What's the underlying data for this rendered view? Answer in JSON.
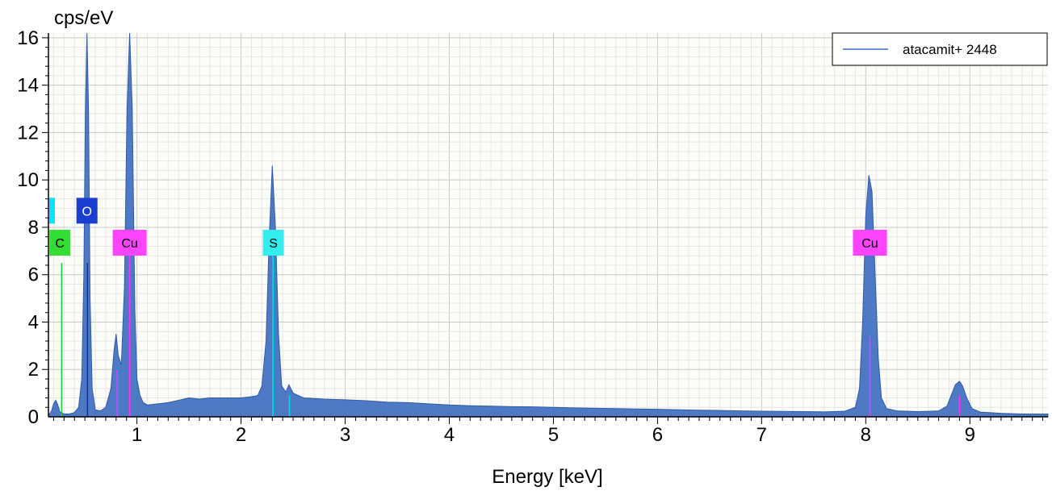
{
  "chart_data": {
    "type": "area",
    "title": "",
    "xlabel": "Energy [keV]",
    "ylabel": "cps/eV",
    "xlim": [
      0.15,
      9.75
    ],
    "ylim": [
      0,
      16.2
    ],
    "x_ticks": [
      1,
      2,
      3,
      4,
      5,
      6,
      7,
      8,
      9
    ],
    "y_ticks": [
      0,
      2,
      4,
      6,
      8,
      10,
      12,
      14,
      16
    ],
    "grid": true,
    "legend_position": "top-right",
    "series": [
      {
        "name": "atacamit+ 2448",
        "color": "#3f6fc0",
        "points": [
          [
            0.15,
            0.05
          ],
          [
            0.18,
            0.25
          ],
          [
            0.2,
            0.55
          ],
          [
            0.22,
            0.7
          ],
          [
            0.24,
            0.5
          ],
          [
            0.26,
            0.2
          ],
          [
            0.3,
            0.12
          ],
          [
            0.35,
            0.12
          ],
          [
            0.4,
            0.18
          ],
          [
            0.44,
            0.4
          ],
          [
            0.47,
            1.6
          ],
          [
            0.49,
            6.0
          ],
          [
            0.505,
            13.0
          ],
          [
            0.52,
            16.2
          ],
          [
            0.535,
            13.0
          ],
          [
            0.55,
            5.0
          ],
          [
            0.57,
            1.2
          ],
          [
            0.6,
            0.3
          ],
          [
            0.65,
            0.25
          ],
          [
            0.7,
            0.4
          ],
          [
            0.75,
            1.2
          ],
          [
            0.78,
            2.8
          ],
          [
            0.8,
            3.5
          ],
          [
            0.82,
            2.6
          ],
          [
            0.85,
            2.2
          ],
          [
            0.88,
            5.5
          ],
          [
            0.905,
            13.0
          ],
          [
            0.93,
            16.2
          ],
          [
            0.955,
            13.0
          ],
          [
            0.98,
            4.5
          ],
          [
            1.0,
            1.6
          ],
          [
            1.03,
            0.9
          ],
          [
            1.06,
            0.6
          ],
          [
            1.1,
            0.5
          ],
          [
            1.2,
            0.55
          ],
          [
            1.3,
            0.6
          ],
          [
            1.4,
            0.7
          ],
          [
            1.5,
            0.8
          ],
          [
            1.6,
            0.75
          ],
          [
            1.7,
            0.8
          ],
          [
            1.8,
            0.8
          ],
          [
            1.9,
            0.8
          ],
          [
            2.0,
            0.8
          ],
          [
            2.1,
            0.85
          ],
          [
            2.16,
            0.9
          ],
          [
            2.2,
            1.3
          ],
          [
            2.24,
            3.2
          ],
          [
            2.27,
            7.5
          ],
          [
            2.3,
            10.6
          ],
          [
            2.33,
            8.0
          ],
          [
            2.36,
            3.5
          ],
          [
            2.39,
            1.3
          ],
          [
            2.43,
            1.05
          ],
          [
            2.46,
            1.35
          ],
          [
            2.5,
            1.0
          ],
          [
            2.6,
            0.8
          ],
          [
            2.8,
            0.75
          ],
          [
            3.0,
            0.72
          ],
          [
            3.2,
            0.68
          ],
          [
            3.4,
            0.62
          ],
          [
            3.6,
            0.6
          ],
          [
            3.8,
            0.55
          ],
          [
            4.0,
            0.5
          ],
          [
            4.2,
            0.47
          ],
          [
            4.4,
            0.45
          ],
          [
            4.6,
            0.43
          ],
          [
            4.8,
            0.42
          ],
          [
            5.0,
            0.4
          ],
          [
            5.2,
            0.38
          ],
          [
            5.4,
            0.36
          ],
          [
            5.6,
            0.35
          ],
          [
            5.8,
            0.33
          ],
          [
            6.0,
            0.32
          ],
          [
            6.2,
            0.3
          ],
          [
            6.4,
            0.28
          ],
          [
            6.6,
            0.27
          ],
          [
            6.8,
            0.25
          ],
          [
            7.0,
            0.24
          ],
          [
            7.2,
            0.23
          ],
          [
            7.4,
            0.22
          ],
          [
            7.6,
            0.21
          ],
          [
            7.8,
            0.24
          ],
          [
            7.9,
            0.4
          ],
          [
            7.94,
            1.2
          ],
          [
            7.97,
            4.0
          ],
          [
            8.0,
            8.5
          ],
          [
            8.03,
            10.2
          ],
          [
            8.06,
            9.5
          ],
          [
            8.09,
            6.0
          ],
          [
            8.12,
            2.5
          ],
          [
            8.15,
            0.8
          ],
          [
            8.2,
            0.35
          ],
          [
            8.3,
            0.25
          ],
          [
            8.5,
            0.22
          ],
          [
            8.7,
            0.25
          ],
          [
            8.78,
            0.45
          ],
          [
            8.82,
            0.9
          ],
          [
            8.86,
            1.35
          ],
          [
            8.9,
            1.5
          ],
          [
            8.93,
            1.3
          ],
          [
            8.97,
            0.8
          ],
          [
            9.02,
            0.35
          ],
          [
            9.1,
            0.2
          ],
          [
            9.3,
            0.15
          ],
          [
            9.5,
            0.12
          ],
          [
            9.75,
            0.12
          ]
        ]
      }
    ],
    "element_lines": [
      {
        "energy": 0.277,
        "height": 6.5,
        "color": "#22cc22"
      },
      {
        "energy": 0.525,
        "height": 6.5,
        "color": "#1030a0"
      },
      {
        "energy": 0.811,
        "height": 2.0,
        "color": "#ff33ff"
      },
      {
        "energy": 0.93,
        "height": 7.0,
        "color": "#ff33ff"
      },
      {
        "energy": 2.307,
        "height": 7.2,
        "color": "#00e0e0"
      },
      {
        "energy": 2.465,
        "height": 0.9,
        "color": "#00e0e0"
      },
      {
        "energy": 8.04,
        "height": 3.4,
        "color": "#ff33ff"
      },
      {
        "energy": 8.9,
        "height": 0.9,
        "color": "#ff33ff"
      }
    ],
    "element_labels": [
      {
        "text": "",
        "energy": 0.15,
        "y": 8.7,
        "color": "#00e5ff",
        "text_color": "#000000"
      },
      {
        "text": "O",
        "energy": 0.52,
        "y": 8.7,
        "color": "#1a3fd0",
        "text_color": "#ffffff"
      },
      {
        "text": "C",
        "energy": 0.26,
        "y": 7.35,
        "color": "#33dd33",
        "text_color": "#000000"
      },
      {
        "text": "Cu",
        "energy": 0.93,
        "y": 7.35,
        "color": "#ff44ff",
        "text_color": "#000000"
      },
      {
        "text": "S",
        "energy": 2.31,
        "y": 7.35,
        "color": "#33eeee",
        "text_color": "#000000"
      },
      {
        "text": "Cu",
        "energy": 8.04,
        "y": 7.35,
        "color": "#ff44ff",
        "text_color": "#000000"
      }
    ]
  }
}
